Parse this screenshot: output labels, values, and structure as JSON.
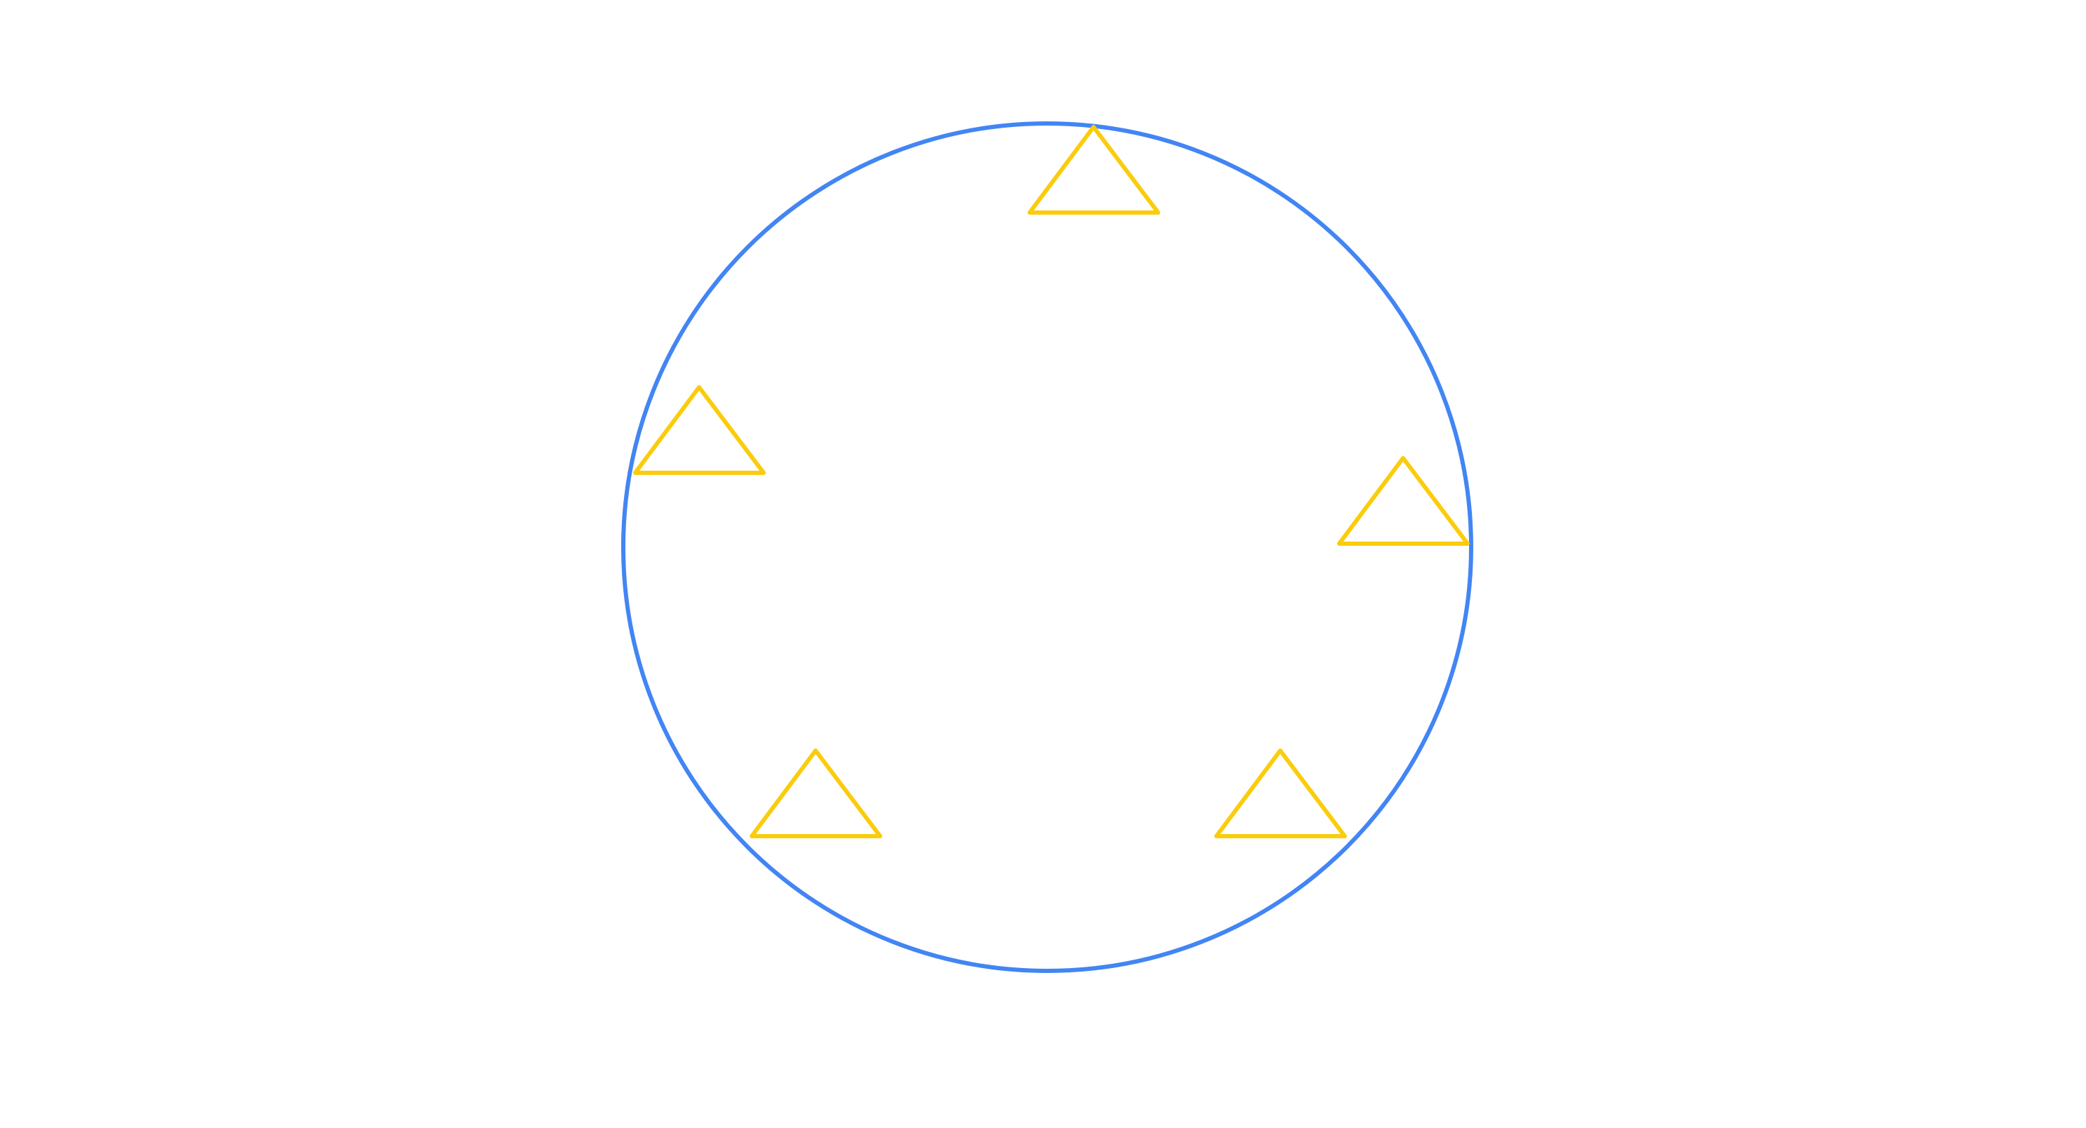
{
  "diagram": {
    "colors": {
      "background": "#ffffff",
      "circle": "#4285f4",
      "triangle": "#fbcc0c"
    },
    "shapes": {
      "circle": {
        "icon": "circle-outline"
      },
      "triangles": [
        {
          "icon": "triangle-outline"
        },
        {
          "icon": "triangle-outline"
        },
        {
          "icon": "triangle-outline"
        },
        {
          "icon": "triangle-outline"
        },
        {
          "icon": "triangle-outline"
        }
      ]
    }
  }
}
